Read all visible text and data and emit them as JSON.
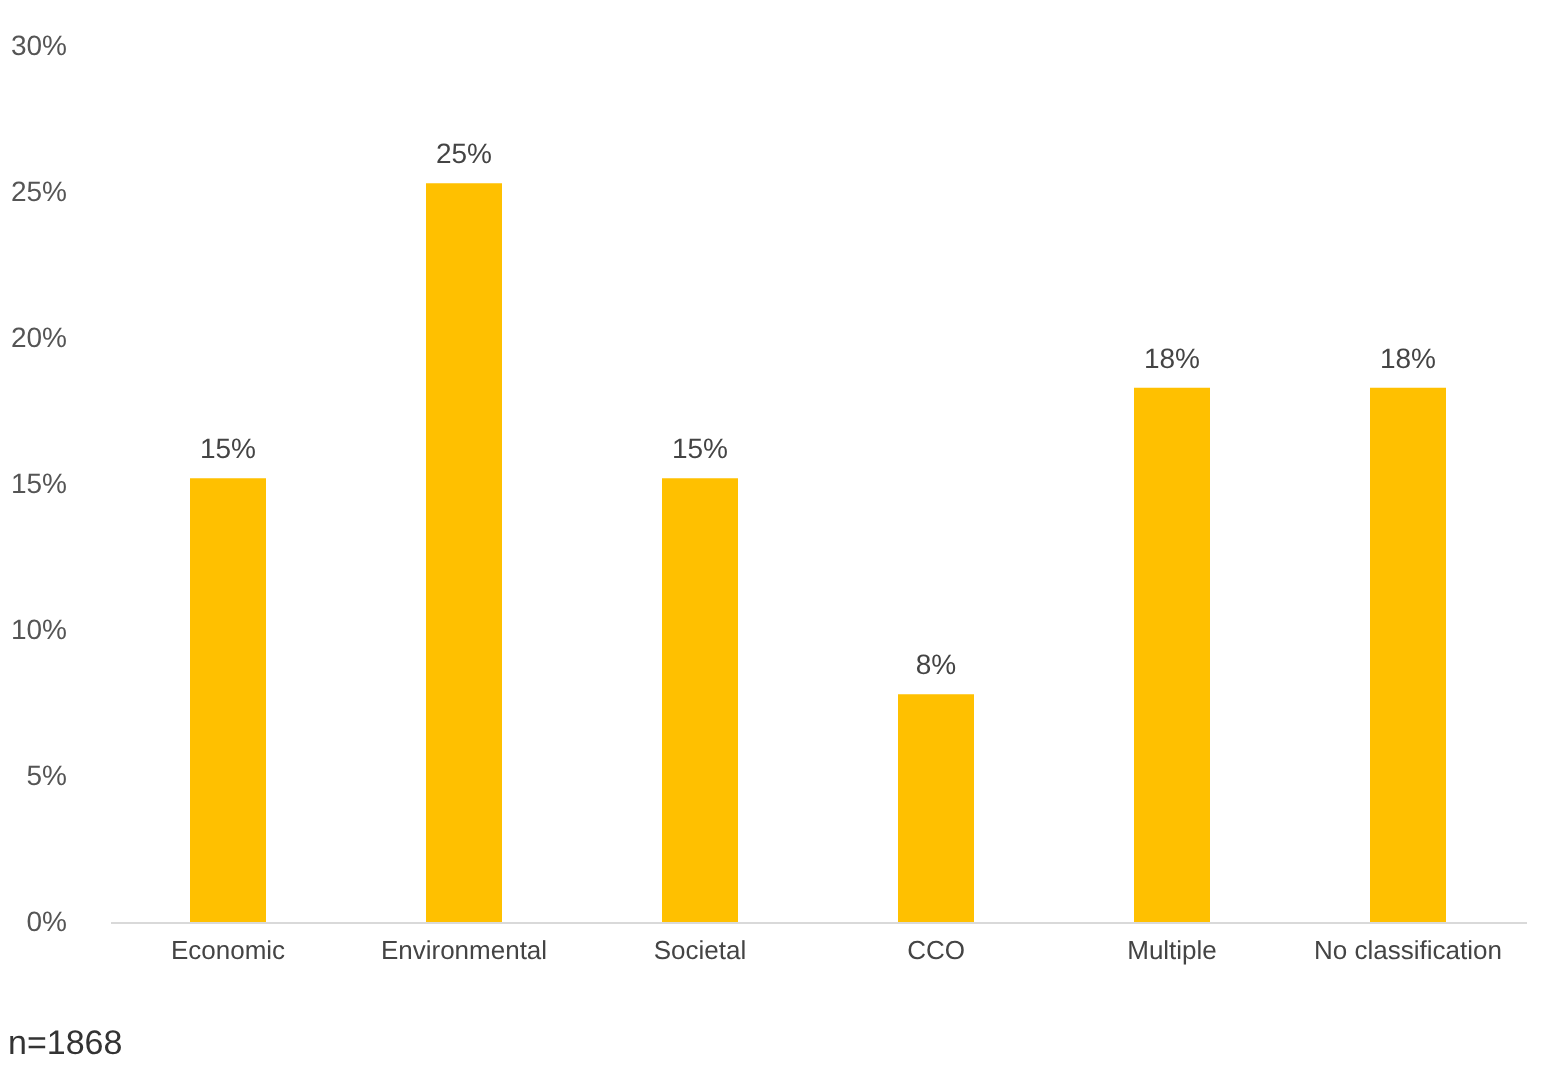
{
  "chart_data": {
    "type": "bar",
    "categories": [
      "Economic",
      "Environmental",
      "Societal",
      "CCO",
      "Multiple",
      "No classification"
    ],
    "values": [
      15.2,
      25.3,
      15.2,
      7.8,
      18.3,
      18.3
    ],
    "value_labels": [
      "15%",
      "25%",
      "15%",
      "8%",
      "18%",
      "18%"
    ],
    "color": "#ffc000",
    "ylim": [
      0,
      30
    ],
    "yticks": [
      {
        "value": 0,
        "label": "0%"
      },
      {
        "value": 5,
        "label": "5%"
      },
      {
        "value": 10,
        "label": "10%"
      },
      {
        "value": 15,
        "label": "15%"
      },
      {
        "value": 20,
        "label": "20%"
      },
      {
        "value": 25,
        "label": "25%"
      },
      {
        "value": 30,
        "label": "30%"
      }
    ],
    "annotations": [
      "n=1868"
    ]
  }
}
